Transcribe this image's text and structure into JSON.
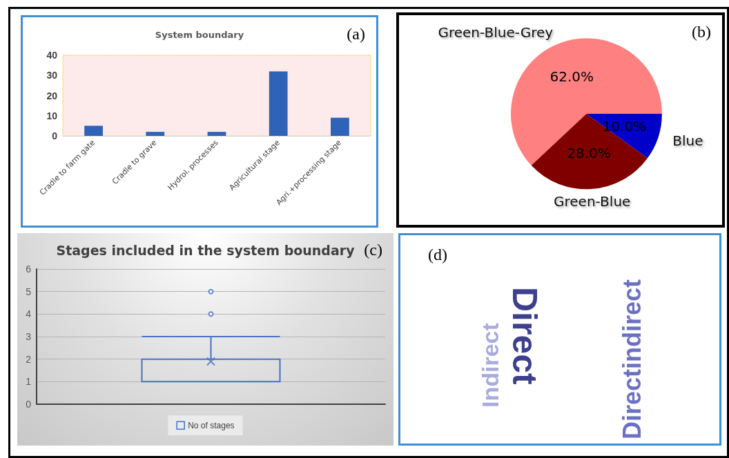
{
  "chart_data": [
    {
      "type": "bar",
      "title": "System boundary",
      "categories": [
        "Cradle to farm gate",
        "Cradle to grave",
        "Hydrol. processes",
        "Agricultural stage",
        "Agri.+processing stage"
      ],
      "values": [
        5,
        2,
        2,
        32,
        9
      ],
      "color": "#2e63b8",
      "ylim": [
        0,
        40
      ],
      "yticks": [
        0,
        10,
        20,
        30,
        40
      ],
      "grid": false,
      "annotations": [
        "(a)"
      ]
    },
    {
      "type": "pie",
      "categories": [
        "Green-Blue-Grey",
        "Green-Blue",
        "Blue"
      ],
      "values": [
        62.0,
        28.0,
        10.0
      ],
      "colors": [
        "#ff8080",
        "#800000",
        "#0000c8"
      ],
      "value_labels": [
        "62.0%",
        "28.0%",
        "10.0%"
      ],
      "annotations": [
        "(b)"
      ]
    },
    {
      "type": "box",
      "title": "Stages included in the system boundary",
      "categories": [
        null
      ],
      "series": [
        {
          "name": "No of stages",
          "color": "#4472c4",
          "boxes": [
            {
              "low": 1,
              "q1": 1,
              "median": 1,
              "q3": 2,
              "high": 3,
              "mean": 1.9,
              "outliers": [
                4,
                5
              ]
            }
          ]
        }
      ],
      "ylim": [
        0,
        6
      ],
      "yticks": [
        0,
        1,
        2,
        3,
        4,
        5,
        6
      ],
      "grid": "y",
      "legend": "bottom",
      "annotations": [
        "(c)"
      ]
    },
    {
      "type": "other",
      "annotations": [
        "(d)",
        "Indirect",
        "Direct",
        "Directindirect"
      ]
    }
  ]
}
